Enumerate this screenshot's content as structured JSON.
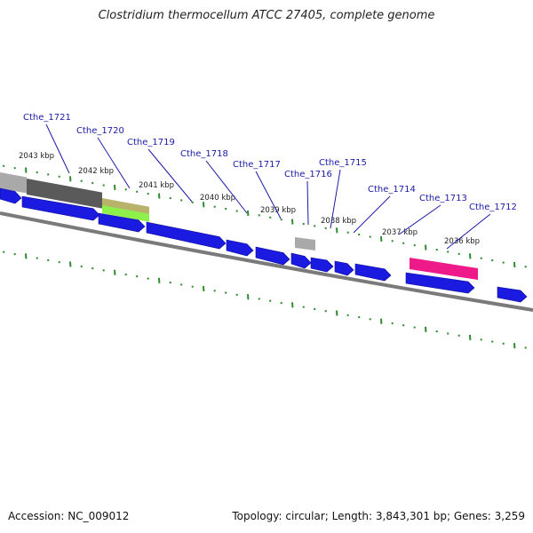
{
  "title": "Clostridium thermocellum ATCC 27405, complete genome",
  "footer": {
    "accession": "Accession: NC_009012",
    "summary": "Topology: circular; Length: 3,843,301 bp; Genes: 3,259"
  },
  "colors": {
    "gene_arrow": "#1a1ae0",
    "backbone": "#7a7a7a",
    "tick": "#2e8b2e",
    "label": "#1a1aa8",
    "feature_gray": "#a9a9a9",
    "feature_darkgray": "#5a5a5a",
    "feature_olive": "#b8b26a",
    "feature_green": "#8ef04a",
    "feature_pink": "#ee1a8a"
  },
  "kbp_ticks": [
    "2043 kbp",
    "2042 kbp",
    "2041 kbp",
    "2040 kbp",
    "2039 kbp",
    "2038 kbp",
    "2037 kbp",
    "2036 kbp"
  ],
  "gene_labels": [
    "Cthe_1721",
    "Cthe_1720",
    "Cthe_1719",
    "Cthe_1718",
    "Cthe_1717",
    "Cthe_1716",
    "Cthe_1715",
    "Cthe_1714",
    "Cthe_1713",
    "Cthe_1712"
  ]
}
